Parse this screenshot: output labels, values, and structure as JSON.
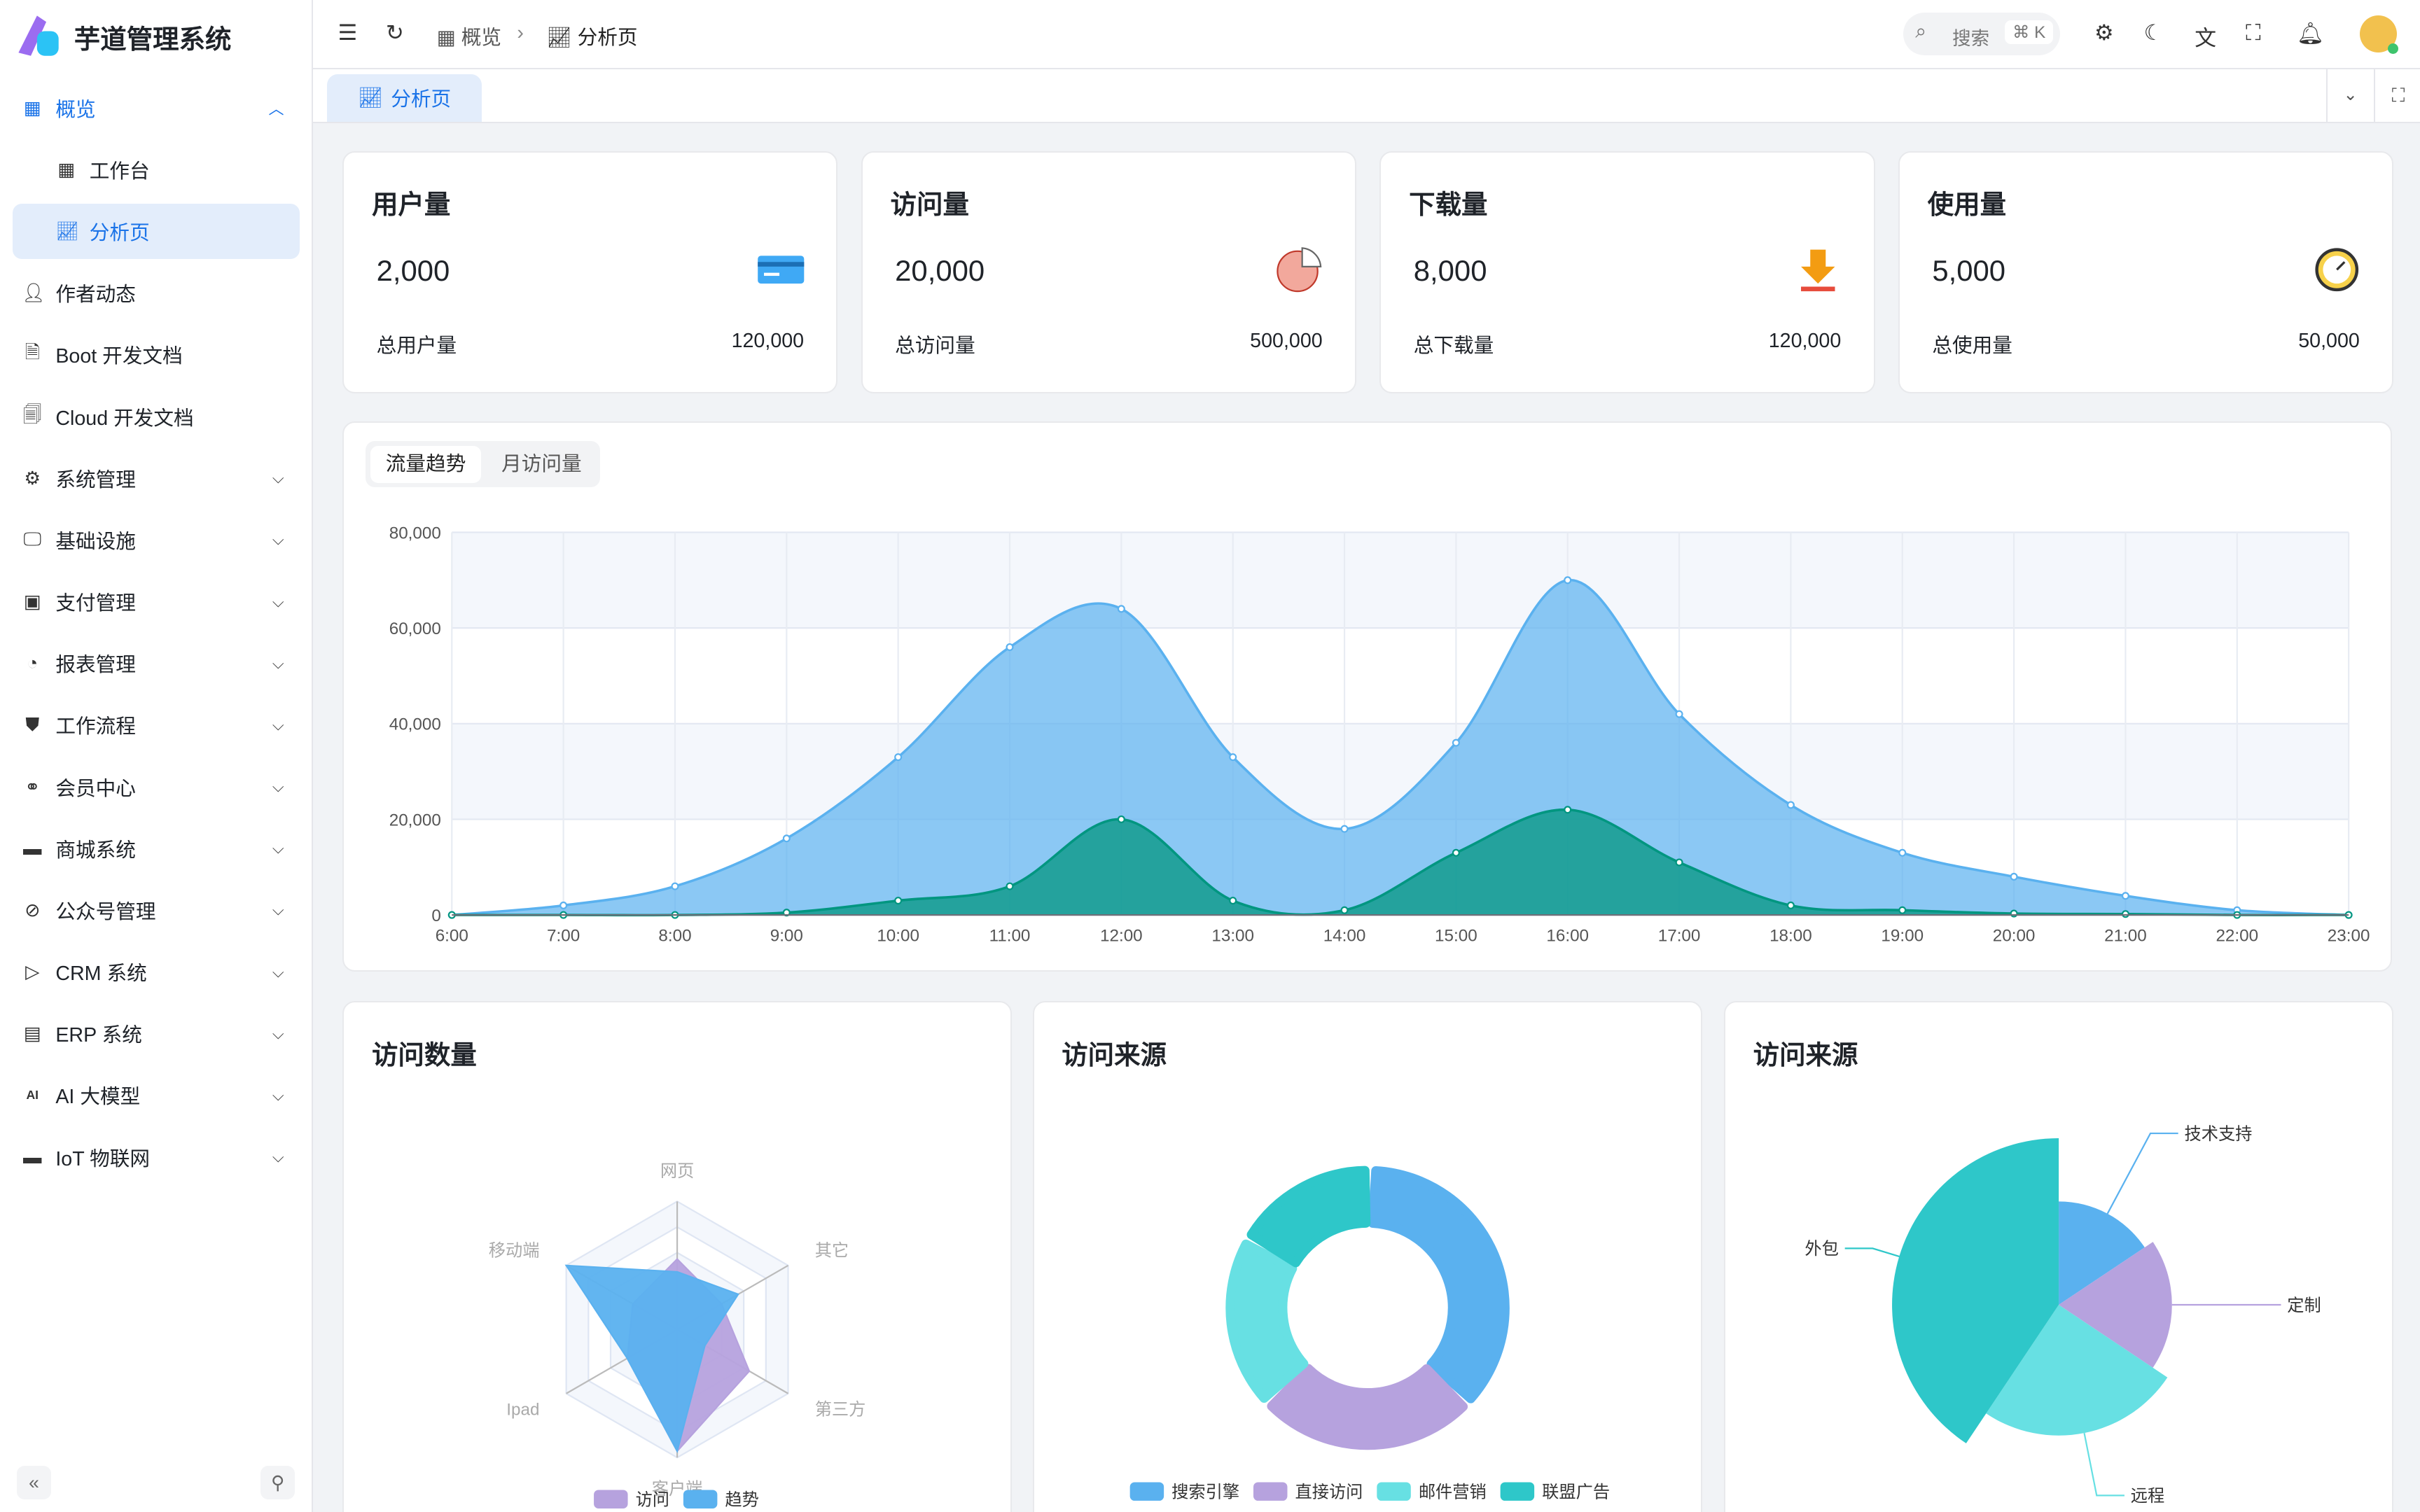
{
  "app": {
    "title": "芋道管理系统"
  },
  "sidebar": {
    "items": [
      {
        "label": "概览",
        "icon": "grid-icon",
        "open": true
      },
      {
        "label": "工作台",
        "icon": "grid-icon",
        "sub": true
      },
      {
        "label": "分析页",
        "icon": "chart-line-icon",
        "sub": true,
        "active": true
      },
      {
        "label": "作者动态",
        "icon": "user-icon"
      },
      {
        "label": "Boot 开发文档",
        "icon": "document-icon"
      },
      {
        "label": "Cloud 开发文档",
        "icon": "documents-icon"
      },
      {
        "label": "系统管理",
        "icon": "gear-icon",
        "chev": true
      },
      {
        "label": "基础设施",
        "icon": "monitor-icon",
        "chev": true
      },
      {
        "label": "支付管理",
        "icon": "payment-icon",
        "chev": true
      },
      {
        "label": "报表管理",
        "icon": "pie-icon",
        "chev": true
      },
      {
        "label": "工作流程",
        "icon": "workflow-icon",
        "chev": true
      },
      {
        "label": "会员中心",
        "icon": "bike-icon",
        "chev": true
      },
      {
        "label": "商城系统",
        "icon": "store-icon",
        "chev": true
      },
      {
        "label": "公众号管理",
        "icon": "compass-icon",
        "chev": true
      },
      {
        "label": "CRM 系统",
        "icon": "crm-icon",
        "chev": true
      },
      {
        "label": "ERP 系统",
        "icon": "erp-icon",
        "chev": true
      },
      {
        "label": "AI 大模型",
        "icon": "ai-icon",
        "chev": true
      },
      {
        "label": "IoT 物联网",
        "icon": "server-icon",
        "chev": true
      }
    ]
  },
  "header": {
    "breadcrumb": [
      "概览",
      "分析页"
    ],
    "search_label": "搜索",
    "search_shortcut": "⌘ K"
  },
  "tabs": [
    {
      "label": "分析页",
      "active": true
    }
  ],
  "stats": [
    {
      "title": "用户量",
      "value": "2,000",
      "total_label": "总用户量",
      "total": "120,000",
      "icon": "card-icon"
    },
    {
      "title": "访问量",
      "value": "20,000",
      "total_label": "总访问量",
      "total": "500,000",
      "icon": "pie-chart-icon"
    },
    {
      "title": "下载量",
      "value": "8,000",
      "total_label": "总下载量",
      "total": "120,000",
      "icon": "download-icon"
    },
    {
      "title": "使用量",
      "value": "5,000",
      "total_label": "总使用量",
      "total": "50,000",
      "icon": "clock-icon"
    }
  ],
  "trend": {
    "tabs": [
      "流量趋势",
      "月访问量"
    ],
    "active_tab": 0
  },
  "chart_data": [
    {
      "type": "area",
      "x": [
        "6:00",
        "7:00",
        "8:00",
        "9:00",
        "10:00",
        "11:00",
        "12:00",
        "13:00",
        "14:00",
        "15:00",
        "16:00",
        "17:00",
        "18:00",
        "19:00",
        "20:00",
        "21:00",
        "22:00",
        "23:00"
      ],
      "ylim": [
        0,
        80000
      ],
      "yticks": [
        "0",
        "20,000",
        "40,000",
        "60,000",
        "80,000"
      ],
      "grid": true,
      "series": [
        {
          "values": [
            0,
            2000,
            6000,
            16000,
            33000,
            56000,
            64000,
            33000,
            18000,
            36000,
            70000,
            42000,
            23000,
            13000,
            8000,
            4000,
            1000,
            0
          ],
          "color": "#5ab1ef"
        },
        {
          "values": [
            0,
            0,
            0,
            500,
            3000,
            6000,
            20000,
            3000,
            1000,
            13000,
            22000,
            11000,
            2000,
            1000,
            300,
            200,
            0,
            0
          ],
          "color": "#019680"
        }
      ]
    },
    {
      "type": "radar",
      "title": "访问数量",
      "indicators": [
        "网页",
        "其它",
        "第三方",
        "客户端",
        "Ipad",
        "移动端"
      ],
      "max": 100,
      "series": [
        {
          "name": "访问",
          "values": [
            55,
            40,
            65,
            95,
            45,
            40
          ],
          "color": "#b6a2de"
        },
        {
          "name": "趋势",
          "values": [
            45,
            55,
            25,
            95,
            45,
            100
          ],
          "color": "#5ab1ef"
        }
      ]
    },
    {
      "type": "pie",
      "title": "访问来源",
      "donut": true,
      "legend": "bottom",
      "series": [
        {
          "name": "搜索引擎",
          "value": 1048,
          "color": "#5ab1ef"
        },
        {
          "name": "直接访问",
          "value": 735,
          "color": "#b6a2de"
        },
        {
          "name": "邮件营销",
          "value": 580,
          "color": "#67e0e3"
        },
        {
          "name": "联盟广告",
          "value": 484,
          "color": "#2ec7c9"
        }
      ]
    },
    {
      "type": "pie",
      "title": "访问来源",
      "rose": true,
      "series": [
        {
          "name": "技术支持",
          "value": 10,
          "color": "#5ab1ef"
        },
        {
          "name": "定制",
          "value": 12,
          "color": "#b6a2de"
        },
        {
          "name": "远程",
          "value": 16,
          "color": "#67e0e3"
        },
        {
          "name": "外包",
          "value": 26,
          "color": "#2ec7c9"
        }
      ]
    }
  ]
}
